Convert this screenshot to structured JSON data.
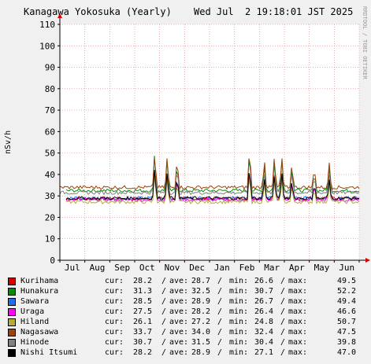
{
  "header": {
    "title": "Kanagawa Yokosuka (Yearly)",
    "timestamp": "Wed Jul  2 19:18:01 JST 2025",
    "watermark": "RRDTOOL / TOBI OETIKER"
  },
  "legend_labels": {
    "cur": "cur:",
    "ave": "ave:",
    "min": "min:",
    "max": "max:",
    "sep": "/"
  },
  "chart_data": {
    "type": "line",
    "title": "Kanagawa Yokosuka (Yearly)",
    "ylabel": "nSv/h",
    "ylim": [
      0,
      110
    ],
    "yticks": [
      0,
      10,
      20,
      30,
      40,
      50,
      60,
      70,
      80,
      90,
      100,
      110
    ],
    "xticks": [
      "Jul",
      "Aug",
      "Sep",
      "Oct",
      "Nov",
      "Dec",
      "Jan",
      "Feb",
      "Mar",
      "Apr",
      "May",
      "Jun"
    ],
    "grid": true,
    "series": [
      {
        "name": "Kurihama",
        "color": "#d40000",
        "cur": "28.2",
        "ave": "28.7",
        "min": "26.6",
        "max": "49.5",
        "level": 28.7
      },
      {
        "name": "Hunakura",
        "color": "#0a8a0a",
        "cur": "31.3",
        "ave": "32.5",
        "min": "30.7",
        "max": "52.2",
        "level": 32.5
      },
      {
        "name": "Sawara",
        "color": "#1e6ee6",
        "cur": "28.5",
        "ave": "28.9",
        "min": "26.7",
        "max": "49.4",
        "level": 28.9
      },
      {
        "name": "Uraga",
        "color": "#ff00ff",
        "cur": "27.5",
        "ave": "28.2",
        "min": "26.4",
        "max": "46.6",
        "level": 28.2
      },
      {
        "name": "Hiland",
        "color": "#b4aa3c",
        "cur": "26.1",
        "ave": "27.2",
        "min": "24.8",
        "max": "50.7",
        "level": 27.2
      },
      {
        "name": "Nagasawa",
        "color": "#a0400a",
        "cur": "33.7",
        "ave": "34.0",
        "min": "32.4",
        "max": "47.5",
        "level": 34.0
      },
      {
        "name": "Hinode",
        "color": "#808080",
        "cur": "30.7",
        "ave": "31.5",
        "min": "30.4",
        "max": "39.8",
        "level": 31.5
      },
      {
        "name": "Nishi Itsumi",
        "color": "#000000",
        "cur": "28.2",
        "ave": "28.9",
        "min": "27.1",
        "max": "47.0",
        "level": 28.9
      }
    ],
    "spikes": [
      {
        "month_pos": 3.8,
        "height": 51
      },
      {
        "month_pos": 4.3,
        "height": 47
      },
      {
        "month_pos": 4.7,
        "height": 45
      },
      {
        "month_pos": 7.6,
        "height": 52
      },
      {
        "month_pos": 8.2,
        "height": 44
      },
      {
        "month_pos": 8.6,
        "height": 46
      },
      {
        "month_pos": 8.9,
        "height": 47
      },
      {
        "month_pos": 9.3,
        "height": 42
      },
      {
        "month_pos": 10.2,
        "height": 40
      },
      {
        "month_pos": 10.8,
        "height": 42
      }
    ]
  }
}
